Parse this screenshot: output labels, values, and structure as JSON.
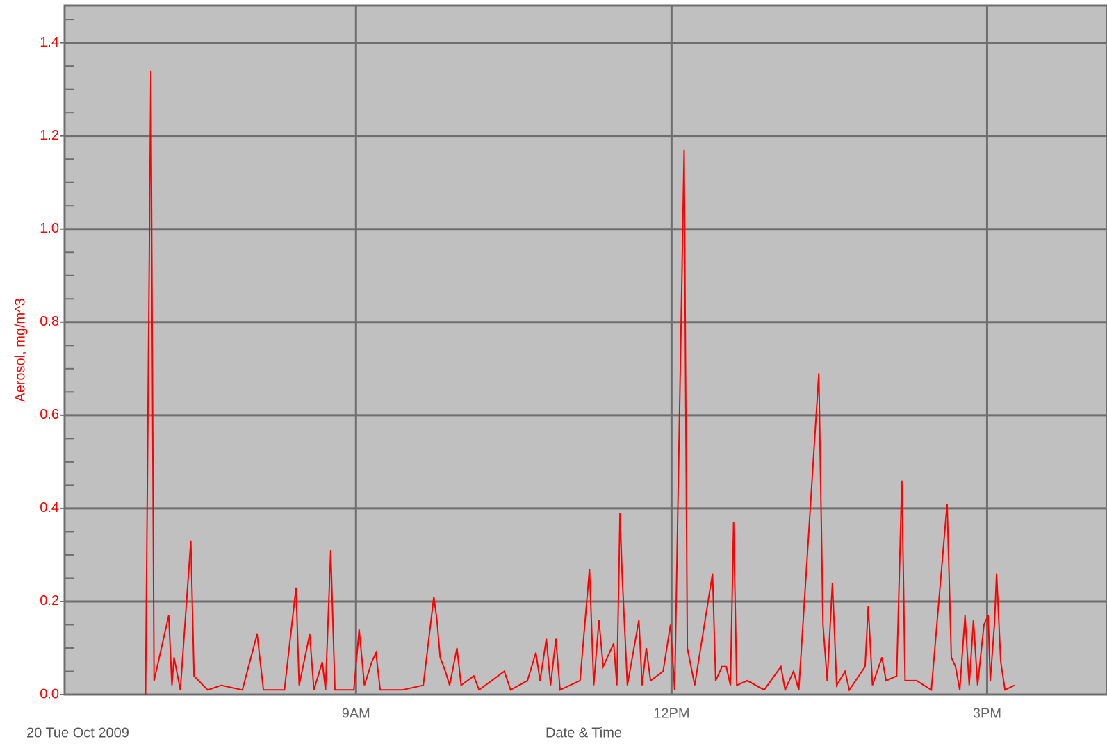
{
  "chart_data": {
    "type": "line",
    "y_label": "Aerosol, mg/m^3",
    "x_label": "Date & Time",
    "date_label": "20 Tue Oct 2009",
    "x": [
      7.0,
      7.05,
      7.08,
      7.22,
      7.25,
      7.27,
      7.33,
      7.43,
      7.46,
      7.59,
      7.72,
      7.92,
      8.06,
      8.12,
      8.32,
      8.43,
      8.46,
      8.56,
      8.6,
      8.68,
      8.71,
      8.76,
      8.8,
      8.98,
      9.03,
      9.08,
      9.15,
      9.19,
      9.23,
      9.44,
      9.64,
      9.74,
      9.77,
      9.8,
      9.85,
      9.89,
      9.96,
      10.0,
      10.12,
      10.17,
      10.41,
      10.47,
      10.63,
      10.71,
      10.75,
      10.81,
      10.85,
      10.9,
      10.94,
      11.13,
      11.22,
      11.26,
      11.31,
      11.35,
      11.45,
      11.48,
      11.51,
      11.53,
      11.58,
      11.69,
      11.72,
      11.76,
      11.8,
      11.92,
      11.99,
      12.03,
      12.12,
      12.15,
      12.22,
      12.39,
      12.42,
      12.48,
      12.52,
      12.56,
      12.59,
      12.62,
      12.72,
      12.88,
      13.04,
      13.08,
      13.16,
      13.21,
      13.4,
      13.44,
      13.48,
      13.53,
      13.57,
      13.65,
      13.69,
      13.84,
      13.87,
      13.91,
      14.0,
      14.04,
      14.14,
      14.19,
      14.22,
      14.33,
      14.47,
      14.62,
      14.66,
      14.7,
      14.74,
      14.79,
      14.83,
      14.87,
      14.91,
      14.97,
      15.01,
      15.03,
      15.07,
      15.09,
      15.13,
      15.17,
      15.26
    ],
    "values": [
      0.0,
      1.34,
      0.03,
      0.17,
      0.02,
      0.08,
      0.01,
      0.33,
      0.04,
      0.01,
      0.02,
      0.01,
      0.13,
      0.01,
      0.01,
      0.23,
      0.02,
      0.13,
      0.01,
      0.07,
      0.01,
      0.31,
      0.01,
      0.01,
      0.14,
      0.02,
      0.07,
      0.09,
      0.01,
      0.01,
      0.02,
      0.21,
      0.16,
      0.08,
      0.05,
      0.02,
      0.1,
      0.02,
      0.04,
      0.01,
      0.05,
      0.01,
      0.03,
      0.09,
      0.03,
      0.12,
      0.02,
      0.12,
      0.01,
      0.03,
      0.27,
      0.02,
      0.16,
      0.06,
      0.11,
      0.02,
      0.39,
      0.26,
      0.02,
      0.16,
      0.02,
      0.1,
      0.03,
      0.05,
      0.15,
      0.01,
      1.17,
      0.1,
      0.02,
      0.26,
      0.03,
      0.06,
      0.06,
      0.02,
      0.37,
      0.02,
      0.03,
      0.01,
      0.06,
      0.01,
      0.05,
      0.01,
      0.69,
      0.15,
      0.03,
      0.24,
      0.02,
      0.05,
      0.01,
      0.06,
      0.19,
      0.02,
      0.08,
      0.03,
      0.04,
      0.46,
      0.03,
      0.03,
      0.01,
      0.41,
      0.08,
      0.06,
      0.01,
      0.17,
      0.02,
      0.16,
      0.02,
      0.15,
      0.17,
      0.03,
      0.15,
      0.26,
      0.07,
      0.01,
      0.02
    ],
    "color": "#ff0000",
    "xlim": [
      6.23,
      16.14
    ],
    "xticks": [
      {
        "value": 9,
        "label": "9AM"
      },
      {
        "value": 12,
        "label": "12PM"
      },
      {
        "value": 15,
        "label": "3PM"
      }
    ],
    "ylim": [
      0,
      1.48
    ],
    "yticks": [
      {
        "value": 0,
        "label": "0.0"
      },
      0.2,
      0.4,
      0.6,
      0.8,
      {
        "value": 1,
        "label": "1.0"
      },
      1.2,
      1.4
    ],
    "yminorticks": [
      0.05,
      0.1,
      0.15,
      0.25,
      0.3,
      0.35,
      0.45,
      0.5,
      0.55,
      0.65,
      0.7,
      0.75,
      0.85,
      0.9,
      0.95,
      1.05,
      1.1,
      1.15,
      1.25,
      1.3,
      1.35,
      1.45
    ],
    "grid": true
  }
}
